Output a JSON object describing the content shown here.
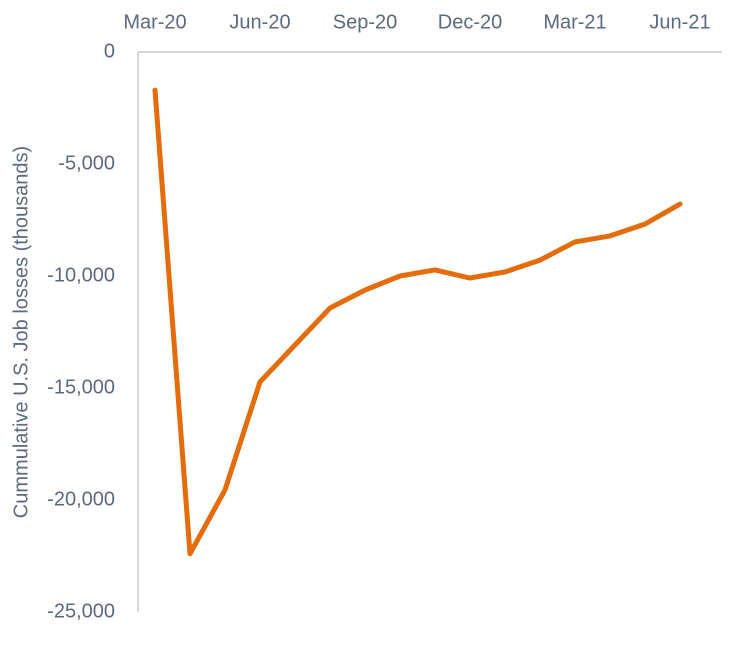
{
  "chart_data": {
    "type": "line",
    "y_label": "Cummulative U.S. Job losses (thousands)",
    "categories": [
      "Mar-20",
      null,
      null,
      "Jun-20",
      null,
      null,
      "Sep-20",
      null,
      null,
      "Dec-20",
      null,
      null,
      "Mar-21",
      null,
      null,
      "Jun-21"
    ],
    "values": [
      -1700,
      -22400,
      -19550,
      -14730,
      -13080,
      -11430,
      -10630,
      -10000,
      -9730,
      -10090,
      -9820,
      -9290,
      -8480,
      -8210,
      -7680,
      -6790
    ],
    "color": "#e46c0a",
    "ylim": [
      -25000,
      0
    ],
    "yticks": [
      {
        "value": -25000,
        "label": "-25,000"
      },
      {
        "value": -20000,
        "label": "-20,000"
      },
      {
        "value": -15000,
        "label": "-15,000"
      },
      {
        "value": -10000,
        "label": "-10,000"
      },
      {
        "value": -5000,
        "label": "-5,000"
      },
      0
    ],
    "grid": false
  }
}
